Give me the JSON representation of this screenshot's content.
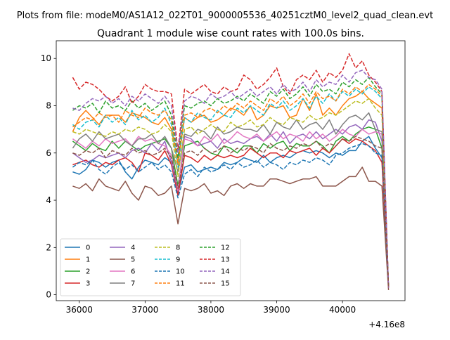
{
  "chart_data": {
    "type": "line",
    "suptitle": "Plots from file: modeM0/AS1A12_022T01_9000005536_40251cztM0_level2_quad_clean.evt",
    "title": "Quadrant 1 module wise count rates with 100.0s bins.",
    "xlabel": "",
    "ylabel": "",
    "x_offset_label": "+4.16e8",
    "x_offset": 416000000,
    "xlim": [
      35650,
      40950
    ],
    "ylim": [
      -0.25,
      10.75
    ],
    "x_ticks": [
      36000,
      37000,
      38000,
      39000,
      40000
    ],
    "x_tick_labels": [
      "36000",
      "37000",
      "38000",
      "39000",
      "40000"
    ],
    "y_ticks": [
      0,
      2,
      4,
      6,
      8,
      10
    ],
    "y_tick_labels": [
      "0",
      "2",
      "4",
      "6",
      "8",
      "10"
    ],
    "legend_position": "lower-left",
    "legend_ncol": 4,
    "x": [
      35900,
      36000,
      36100,
      36200,
      36300,
      36400,
      36500,
      36600,
      36700,
      36800,
      36900,
      37000,
      37100,
      37200,
      37300,
      37400,
      37500,
      37600,
      37700,
      37800,
      37900,
      38000,
      38100,
      38200,
      38300,
      38400,
      38500,
      38600,
      38700,
      38800,
      38900,
      39000,
      39100,
      39200,
      39300,
      39400,
      39500,
      39600,
      39700,
      39800,
      39900,
      40000,
      40100,
      40200,
      40300,
      40400,
      40500,
      40600,
      40700
    ],
    "series": [
      {
        "name": "0",
        "color": "#1f77b4",
        "dash": "solid",
        "values": [
          5.2,
          5.1,
          5.3,
          5.7,
          5.6,
          5.4,
          5.6,
          5.7,
          5.2,
          4.9,
          5.4,
          5.7,
          5.6,
          5.5,
          5.8,
          5.6,
          4.3,
          5.4,
          5.5,
          5.2,
          5.3,
          5.4,
          5.3,
          5.6,
          5.5,
          5.6,
          5.8,
          5.7,
          5.6,
          5.9,
          5.6,
          5.8,
          5.9,
          5.8,
          6.0,
          6.1,
          6.0,
          6.1,
          6.0,
          5.8,
          6.0,
          5.9,
          6.1,
          6.1,
          6.5,
          6.7,
          6.2,
          5.8,
          0.3
        ]
      },
      {
        "name": "1",
        "color": "#ff7f0e",
        "dash": "solid",
        "values": [
          6.9,
          7.5,
          7.8,
          7.5,
          7.2,
          7.6,
          7.6,
          7.6,
          7.3,
          7.7,
          7.6,
          7.5,
          7.3,
          7.2,
          7.5,
          7.0,
          5.6,
          7.5,
          7.3,
          7.5,
          7.6,
          7.3,
          7.4,
          7.6,
          7.9,
          7.8,
          7.6,
          8.0,
          7.4,
          7.6,
          8.0,
          7.9,
          8.0,
          7.5,
          7.6,
          8.3,
          7.8,
          8.5,
          7.6,
          7.9,
          7.6,
          8.0,
          8.3,
          8.4,
          8.6,
          8.3,
          8.1,
          7.9,
          0.3
        ]
      },
      {
        "name": "2",
        "color": "#2ca02c",
        "dash": "solid",
        "values": [
          6.5,
          6.3,
          6.1,
          6.4,
          6.2,
          6.1,
          6.5,
          6.2,
          6.5,
          6.3,
          6.1,
          6.3,
          6.4,
          6.5,
          6.6,
          6.2,
          4.6,
          6.3,
          6.4,
          6.5,
          6.2,
          6.0,
          5.9,
          6.3,
          6.2,
          6.0,
          6.3,
          6.3,
          6.0,
          6.4,
          6.2,
          6.4,
          6.5,
          6.1,
          6.4,
          6.3,
          6.3,
          6.5,
          6.3,
          6.0,
          6.5,
          6.7,
          6.5,
          6.8,
          7.0,
          7.1,
          7.0,
          6.2,
          0.3
        ]
      },
      {
        "name": "3",
        "color": "#d62728",
        "dash": "solid",
        "values": [
          5.5,
          5.6,
          5.7,
          5.5,
          5.4,
          5.6,
          5.5,
          5.7,
          5.8,
          5.6,
          5.2,
          6.0,
          5.9,
          5.7,
          6.1,
          5.5,
          4.2,
          5.9,
          5.8,
          5.6,
          5.9,
          5.7,
          5.9,
          5.8,
          5.9,
          5.8,
          5.9,
          6.2,
          6.0,
          5.8,
          6.0,
          6.0,
          5.8,
          6.1,
          6.0,
          6.1,
          6.2,
          5.9,
          6.2,
          6.0,
          6.3,
          6.6,
          6.4,
          6.6,
          6.5,
          6.3,
          6.1,
          5.6,
          0.3
        ]
      },
      {
        "name": "4",
        "color": "#9467bd",
        "dash": "solid",
        "values": [
          6.0,
          5.8,
          5.6,
          5.7,
          5.9,
          5.8,
          5.9,
          6.0,
          5.8,
          6.1,
          6.2,
          6.0,
          6.4,
          6.1,
          6.5,
          5.6,
          4.4,
          6.7,
          6.6,
          6.3,
          6.4,
          6.5,
          6.2,
          6.6,
          6.4,
          6.5,
          6.4,
          6.6,
          6.7,
          6.5,
          6.8,
          6.5,
          6.9,
          6.4,
          6.7,
          6.8,
          6.6,
          6.9,
          6.6,
          6.8,
          7.0,
          6.8,
          7.1,
          7.2,
          7.0,
          7.4,
          7.3,
          6.5,
          0.3
        ]
      },
      {
        "name": "5",
        "color": "#8c564b",
        "dash": "solid",
        "values": [
          4.6,
          4.5,
          4.7,
          4.4,
          4.9,
          4.6,
          4.5,
          4.4,
          4.8,
          4.3,
          4.0,
          4.6,
          4.5,
          4.2,
          4.3,
          4.6,
          3.0,
          4.5,
          4.4,
          4.5,
          4.7,
          4.3,
          4.4,
          4.2,
          4.6,
          4.7,
          4.5,
          4.7,
          4.6,
          4.6,
          4.9,
          4.9,
          4.8,
          4.7,
          4.8,
          4.9,
          4.9,
          5.0,
          4.6,
          4.6,
          4.6,
          4.8,
          5.0,
          5.0,
          5.4,
          4.8,
          4.8,
          4.6,
          0.2
        ]
      },
      {
        "name": "6",
        "color": "#e377c2",
        "dash": "solid",
        "values": [
          6.6,
          6.4,
          6.2,
          6.5,
          6.3,
          6.6,
          6.4,
          6.5,
          6.6,
          6.3,
          6.7,
          6.5,
          6.6,
          6.4,
          6.3,
          5.9,
          4.4,
          6.6,
          6.5,
          6.3,
          6.7,
          6.5,
          6.8,
          6.4,
          6.6,
          6.9,
          6.7,
          6.6,
          6.8,
          6.5,
          6.7,
          6.9,
          6.6,
          6.8,
          6.7,
          6.5,
          6.9,
          6.6,
          6.8,
          6.5,
          6.7,
          7.0,
          6.8,
          6.7,
          7.0,
          6.8,
          6.9,
          6.8,
          0.3
        ]
      },
      {
        "name": "7",
        "color": "#7f7f7f",
        "dash": "solid",
        "values": [
          6.2,
          6.6,
          6.8,
          6.5,
          6.9,
          6.6,
          6.7,
          6.8,
          6.5,
          6.3,
          6.6,
          6.6,
          6.8,
          6.4,
          6.7,
          6.2,
          5.2,
          6.8,
          6.7,
          7.0,
          6.9,
          6.6,
          7.1,
          6.8,
          6.9,
          7.1,
          7.0,
          7.0,
          6.9,
          7.2,
          6.8,
          7.3,
          7.1,
          7.0,
          7.4,
          7.0,
          7.2,
          7.3,
          7.0,
          7.4,
          6.8,
          7.2,
          7.5,
          7.6,
          7.4,
          7.7,
          7.0,
          6.9,
          0.3
        ]
      },
      {
        "name": "8",
        "color": "#bcbd22",
        "dash": "dashed",
        "values": [
          6.9,
          6.8,
          7.0,
          6.9,
          6.8,
          6.7,
          6.9,
          6.8,
          7.0,
          6.9,
          7.1,
          7.0,
          6.8,
          6.9,
          7.2,
          6.9,
          5.0,
          7.0,
          7.1,
          6.8,
          7.0,
          7.2,
          7.0,
          6.9,
          7.3,
          7.1,
          7.2,
          7.4,
          7.1,
          7.2,
          7.5,
          7.3,
          7.2,
          7.5,
          7.4,
          7.3,
          7.6,
          7.4,
          7.5,
          7.7,
          7.6,
          7.8,
          8.0,
          8.2,
          8.1,
          8.3,
          7.9,
          7.6,
          0.3
        ]
      },
      {
        "name": "9",
        "color": "#17becf",
        "dash": "dashed",
        "values": [
          7.2,
          7.0,
          7.3,
          7.4,
          7.1,
          7.6,
          7.3,
          7.5,
          7.2,
          7.8,
          7.4,
          7.6,
          7.3,
          7.5,
          7.9,
          7.2,
          5.4,
          7.5,
          7.3,
          7.7,
          7.5,
          7.4,
          7.8,
          7.6,
          7.5,
          7.9,
          7.7,
          8.0,
          7.8,
          7.6,
          8.1,
          7.9,
          8.2,
          7.8,
          8.0,
          8.3,
          7.9,
          8.4,
          8.1,
          8.5,
          8.2,
          8.6,
          8.4,
          8.7,
          8.5,
          8.8,
          8.6,
          8.3,
          0.3
        ]
      },
      {
        "name": "10",
        "color": "#1f77b4",
        "dash": "dashed",
        "values": [
          5.4,
          5.6,
          5.5,
          5.7,
          5.3,
          5.1,
          5.4,
          5.6,
          5.3,
          5.5,
          5.2,
          5.4,
          5.6,
          5.3,
          5.5,
          5.2,
          4.1,
          5.1,
          5.3,
          5.0,
          5.4,
          5.2,
          5.3,
          5.5,
          5.3,
          5.6,
          5.4,
          5.5,
          5.7,
          5.4,
          5.6,
          5.5,
          5.3,
          5.6,
          5.5,
          5.7,
          5.6,
          5.8,
          5.7,
          5.5,
          5.9,
          6.0,
          6.2,
          6.3,
          6.4,
          6.3,
          6.0,
          5.9,
          0.3
        ]
      },
      {
        "name": "11",
        "color": "#ff7f0e",
        "dash": "dashed",
        "values": [
          7.1,
          7.3,
          7.5,
          7.4,
          7.7,
          7.5,
          7.6,
          7.3,
          7.8,
          7.6,
          7.5,
          7.9,
          7.7,
          7.6,
          7.8,
          7.4,
          5.5,
          7.6,
          7.7,
          7.5,
          7.8,
          7.9,
          7.7,
          8.0,
          7.8,
          8.1,
          7.9,
          8.2,
          8.0,
          7.8,
          8.3,
          8.1,
          8.4,
          8.0,
          8.2,
          8.5,
          8.1,
          8.6,
          8.3,
          8.4,
          8.2,
          8.7,
          8.5,
          8.8,
          8.6,
          8.9,
          8.7,
          8.4,
          0.3
        ]
      },
      {
        "name": "12",
        "color": "#2ca02c",
        "dash": "dashed",
        "values": [
          7.8,
          8.0,
          7.9,
          8.1,
          7.7,
          8.2,
          7.9,
          8.0,
          7.8,
          8.2,
          7.9,
          8.1,
          7.8,
          8.0,
          8.2,
          7.6,
          5.8,
          8.0,
          7.9,
          8.1,
          8.2,
          8.0,
          8.3,
          8.1,
          8.2,
          8.4,
          8.2,
          8.5,
          8.3,
          8.1,
          8.6,
          8.4,
          8.7,
          8.3,
          8.5,
          8.8,
          8.4,
          8.9,
          8.6,
          8.7,
          8.5,
          9.0,
          8.8,
          9.1,
          8.9,
          9.2,
          8.8,
          8.5,
          0.3
        ]
      },
      {
        "name": "13",
        "color": "#d62728",
        "dash": "dashed",
        "values": [
          9.2,
          8.7,
          9.0,
          8.9,
          8.7,
          8.4,
          8.2,
          8.4,
          8.8,
          8.1,
          8.4,
          8.9,
          8.7,
          8.6,
          8.6,
          8.5,
          6.1,
          8.7,
          8.5,
          8.7,
          8.9,
          8.6,
          8.5,
          8.8,
          8.6,
          8.7,
          9.3,
          9.1,
          8.7,
          8.9,
          9.2,
          9.6,
          8.8,
          8.5,
          9.1,
          9.3,
          9.1,
          9.5,
          9.0,
          9.4,
          9.2,
          9.5,
          10.2,
          9.6,
          9.9,
          9.3,
          9.0,
          8.6,
          0.3
        ]
      },
      {
        "name": "14",
        "color": "#9467bd",
        "dash": "dashed",
        "values": [
          7.9,
          7.8,
          8.1,
          8.3,
          8.2,
          8.4,
          8.1,
          8.3,
          8.0,
          8.4,
          8.2,
          8.5,
          8.3,
          8.1,
          8.4,
          8.0,
          6.0,
          8.2,
          8.4,
          8.3,
          8.1,
          8.5,
          8.3,
          8.4,
          8.6,
          8.3,
          8.5,
          8.7,
          8.4,
          8.6,
          8.8,
          8.5,
          8.9,
          8.6,
          8.7,
          9.0,
          8.6,
          9.1,
          8.8,
          9.0,
          8.9,
          9.3,
          9.0,
          9.4,
          9.5,
          9.2,
          9.1,
          8.7,
          0.3
        ]
      },
      {
        "name": "15",
        "color": "#8c564b",
        "dash": "dashed",
        "values": [
          6.0,
          5.9,
          6.1,
          6.0,
          6.2,
          5.8,
          6.1,
          6.0,
          5.9,
          6.2,
          6.0,
          6.1,
          5.9,
          6.0,
          6.2,
          5.8,
          4.5,
          6.0,
          6.1,
          5.9,
          6.2,
          6.0,
          6.1,
          6.3,
          6.0,
          6.2,
          6.1,
          6.3,
          6.2,
          6.0,
          6.4,
          6.2,
          6.1,
          6.3,
          6.2,
          6.4,
          6.3,
          6.5,
          6.2,
          6.4,
          6.3,
          6.6,
          6.5,
          6.7,
          6.6,
          6.5,
          6.3,
          6.2,
          0.3
        ]
      }
    ]
  }
}
